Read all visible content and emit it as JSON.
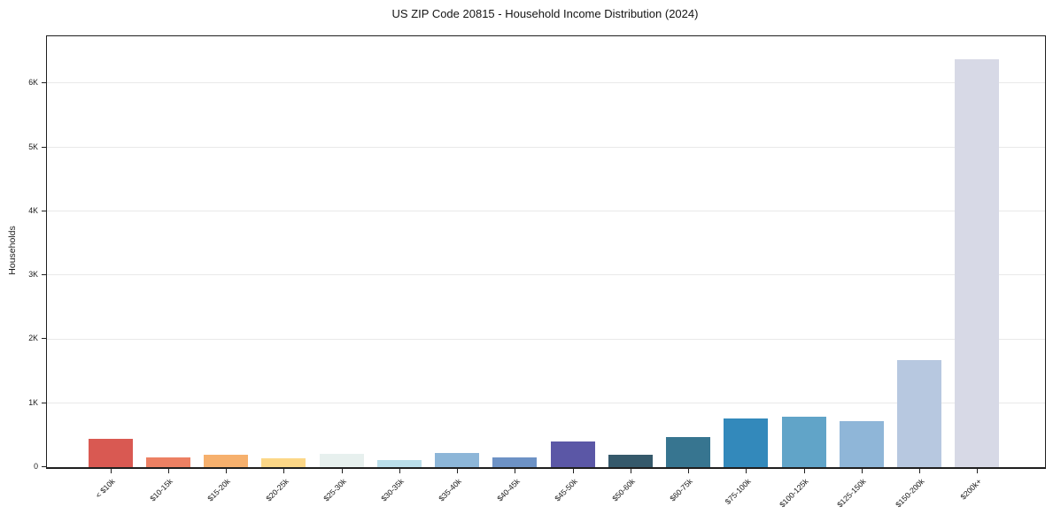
{
  "chart_data": {
    "type": "bar",
    "title": "US ZIP Code 20815 - Household Income Distribution (2024)",
    "xlabel": "",
    "ylabel": "Households",
    "categories": [
      "< $10k",
      "$10-15k",
      "$15-20k",
      "$20-25k",
      "$25-30k",
      "$30-35k",
      "$35-40k",
      "$40-45k",
      "$45-50k",
      "$50-60k",
      "$60-75k",
      "$75-100k",
      "$100-125k",
      "$125-150k",
      "$150-200k",
      "$200k+"
    ],
    "values": [
      450,
      150,
      190,
      140,
      205,
      110,
      215,
      155,
      400,
      190,
      475,
      760,
      790,
      720,
      1670,
      6380
    ],
    "bar_colors": [
      "#d95952",
      "#ec8063",
      "#f6b06d",
      "#fcd787",
      "#e7f0ee",
      "#badeea",
      "#8db6d8",
      "#6d92c5",
      "#5b57a6",
      "#35596b",
      "#377590",
      "#3389bb",
      "#61a4c8",
      "#8fb6d8",
      "#b7c8e0",
      "#d7d9e6"
    ],
    "ytick_labels": [
      "0",
      "1K",
      "2K",
      "3K",
      "4K",
      "5K",
      "6K"
    ],
    "ytick_values": [
      0,
      1000,
      2000,
      3000,
      4000,
      5000,
      6000
    ],
    "ylim": [
      0,
      6740
    ],
    "grid": "horizontal-light",
    "legend": "none",
    "background": "#ffffff",
    "spine_color": "#1f1f1f",
    "gridline_color": "#e9e9e9"
  }
}
